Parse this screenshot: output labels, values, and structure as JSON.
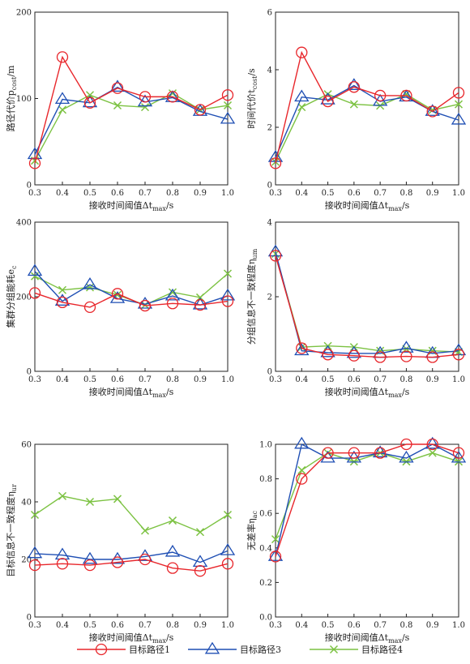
{
  "chart_data": [
    {
      "type": "line",
      "xlabel": "接收时间阈值Δt",
      "xlabel_sub": "max",
      "xlabel_suffix": "/s",
      "ylabel": "路径代价p",
      "ylabel_sub": "cost",
      "ylabel_suffix": "/m",
      "x": [
        0.3,
        0.4,
        0.5,
        0.6,
        0.7,
        0.8,
        0.9,
        1.0
      ],
      "ylim": [
        0,
        200
      ],
      "yticks": [
        0,
        100,
        200
      ],
      "series": [
        {
          "name": "目标路径1",
          "values": [
            25,
            148,
            95,
            112,
            102,
            102,
            87,
            104
          ]
        },
        {
          "name": "目标路径3",
          "values": [
            35,
            99,
            95,
            113,
            96,
            101,
            85,
            76
          ]
        },
        {
          "name": "目标路径4",
          "values": [
            28,
            87,
            104,
            92,
            90,
            106,
            87,
            92
          ]
        }
      ]
    },
    {
      "type": "line",
      "xlabel": "接收时间阈值Δt",
      "xlabel_sub": "max",
      "xlabel_suffix": "/s",
      "ylabel": "时间代价t",
      "ylabel_sub": "cost",
      "ylabel_suffix": "/s",
      "x": [
        0.3,
        0.4,
        0.5,
        0.6,
        0.7,
        0.8,
        0.9,
        1.0
      ],
      "ylim": [
        0,
        6
      ],
      "yticks": [
        0,
        2,
        4,
        6
      ],
      "series": [
        {
          "name": "目标路径1",
          "values": [
            0.75,
            4.6,
            2.9,
            3.4,
            3.1,
            3.1,
            2.55,
            3.2
          ]
        },
        {
          "name": "目标路径3",
          "values": [
            0.95,
            3.05,
            2.95,
            3.45,
            2.9,
            3.05,
            2.55,
            2.25
          ]
        },
        {
          "name": "目标路径4",
          "values": [
            0.8,
            2.7,
            3.15,
            2.8,
            2.75,
            3.15,
            2.6,
            2.8
          ]
        }
      ]
    },
    {
      "type": "line",
      "xlabel": "接收时间阈值Δt",
      "xlabel_sub": "max",
      "xlabel_suffix": "/s",
      "ylabel": "集群分组能耗e",
      "ylabel_sub": "c",
      "ylabel_suffix": "",
      "x": [
        0.3,
        0.4,
        0.5,
        0.6,
        0.7,
        0.8,
        0.9,
        1.0
      ],
      "ylim": [
        0,
        400
      ],
      "yticks": [
        0,
        200,
        400
      ],
      "series": [
        {
          "name": "目标路径1",
          "values": [
            210,
            185,
            172,
            208,
            176,
            182,
            178,
            188
          ]
        },
        {
          "name": "目标路径3",
          "values": [
            268,
            188,
            232,
            195,
            180,
            202,
            178,
            202
          ]
        },
        {
          "name": "目标路径4",
          "values": [
            255,
            218,
            225,
            205,
            178,
            212,
            198,
            262
          ]
        }
      ]
    },
    {
      "type": "line",
      "xlabel": "接收时间阈值Δt",
      "xlabel_sub": "max",
      "xlabel_suffix": "/s",
      "ylabel": "分组信息不一致程度η",
      "ylabel_sub": "um",
      "ylabel_suffix": "",
      "x": [
        0.3,
        0.4,
        0.5,
        0.6,
        0.7,
        0.8,
        0.9,
        1.0
      ],
      "ylim": [
        0,
        4
      ],
      "yticks": [
        0,
        2,
        4
      ],
      "series": [
        {
          "name": "目标路径1",
          "values": [
            3.1,
            0.62,
            0.45,
            0.42,
            0.38,
            0.4,
            0.38,
            0.45
          ]
        },
        {
          "name": "目标路径3",
          "values": [
            3.2,
            0.55,
            0.5,
            0.48,
            0.48,
            0.62,
            0.48,
            0.55
          ]
        },
        {
          "name": "目标路径4",
          "values": [
            3.15,
            0.65,
            0.68,
            0.65,
            0.55,
            0.6,
            0.55,
            0.52
          ]
        }
      ]
    },
    {
      "type": "line",
      "xlabel": "接收时间阈值Δt",
      "xlabel_sub": "max",
      "xlabel_suffix": "/s",
      "ylabel": "目标信息不一致程度η",
      "ylabel_sub": "ur",
      "ylabel_suffix": "",
      "x": [
        0.3,
        0.4,
        0.5,
        0.6,
        0.7,
        0.8,
        0.9,
        1.0
      ],
      "ylim": [
        0,
        60
      ],
      "yticks": [
        0,
        20,
        40,
        60
      ],
      "series": [
        {
          "name": "目标路径1",
          "values": [
            18,
            18.5,
            18,
            19,
            20,
            17,
            16,
            18.5
          ]
        },
        {
          "name": "目标路径3",
          "values": [
            22,
            21.5,
            20,
            20,
            21,
            22.5,
            19,
            23
          ]
        },
        {
          "name": "目标路径4",
          "values": [
            35.5,
            42,
            40,
            41,
            30,
            33.5,
            29.5,
            35.5
          ]
        }
      ]
    },
    {
      "type": "line",
      "xlabel": "接收时间阈值Δt",
      "xlabel_sub": "max",
      "xlabel_suffix": "/s",
      "ylabel": "无差率η",
      "ylabel_sub": "ac",
      "ylabel_suffix": "",
      "x": [
        0.3,
        0.4,
        0.5,
        0.6,
        0.7,
        0.8,
        0.9,
        1.0
      ],
      "ylim": [
        0,
        1.0
      ],
      "yticks": [
        0,
        0.2,
        0.4,
        0.6,
        0.8,
        1.0
      ],
      "series": [
        {
          "name": "目标路径1",
          "values": [
            0.35,
            0.8,
            0.95,
            0.95,
            0.95,
            1.0,
            1.0,
            0.95
          ]
        },
        {
          "name": "目标路径3",
          "values": [
            0.35,
            1.0,
            0.92,
            0.92,
            0.95,
            0.92,
            1.0,
            0.92
          ]
        },
        {
          "name": "目标路径4",
          "values": [
            0.45,
            0.85,
            0.95,
            0.9,
            0.95,
            0.9,
            0.95,
            0.9
          ]
        }
      ]
    }
  ],
  "legend": {
    "items": [
      {
        "label": "目标路径1",
        "color": "#e8262b",
        "marker": "circle-icon"
      },
      {
        "label": "目标路径3",
        "color": "#1f4fb4",
        "marker": "triangle-icon"
      },
      {
        "label": "目标路径4",
        "color": "#7cc242",
        "marker": "cross-icon"
      }
    ]
  },
  "colors": {
    "series": [
      "#e8262b",
      "#1f4fb4",
      "#7cc242"
    ],
    "axis": "#222222"
  }
}
